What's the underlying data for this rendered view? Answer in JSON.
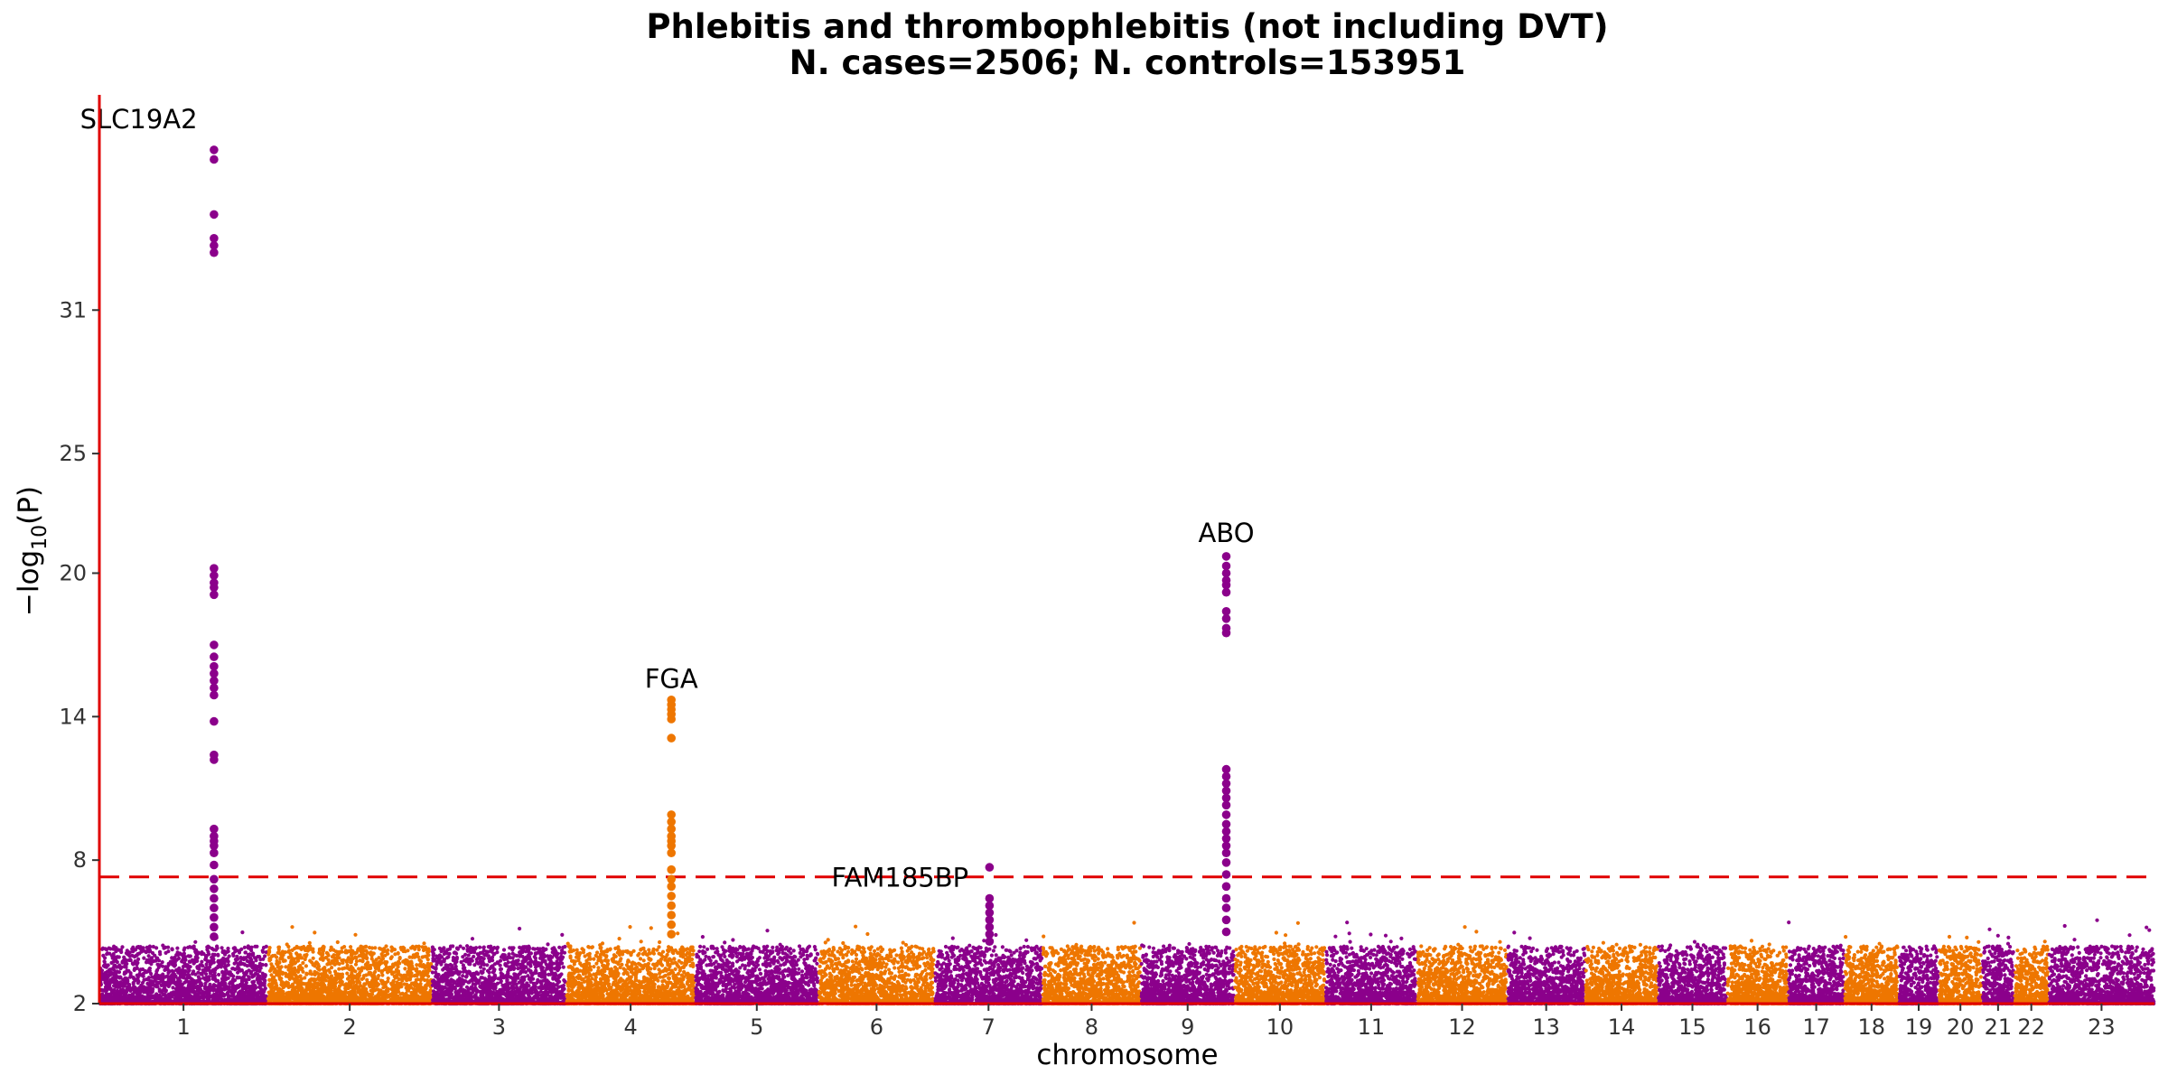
{
  "chart_data": {
    "type": "scatter",
    "title_line1": "Phlebitis and thrombophlebitis (not including DVT)",
    "title_line2": "N. cases=2506; N. controls=153951",
    "xlabel": "chromosome",
    "ylabel": "−log10(P)",
    "ylim": [
      2,
      40
    ],
    "yticks": [
      2,
      8,
      14,
      20,
      25,
      31
    ],
    "significance_threshold": 7.3,
    "colors": {
      "odd": "#8b008b",
      "even": "#ee7600",
      "axis": "#e00000",
      "threshold": "#e00000"
    },
    "chromosomes": [
      {
        "label": "1",
        "start": 0,
        "end": 248
      },
      {
        "label": "2",
        "start": 248,
        "end": 490
      },
      {
        "label": "3",
        "start": 490,
        "end": 688
      },
      {
        "label": "4",
        "start": 688,
        "end": 878
      },
      {
        "label": "5",
        "start": 878,
        "end": 1060
      },
      {
        "label": "6",
        "start": 1060,
        "end": 1231
      },
      {
        "label": "7",
        "start": 1231,
        "end": 1390
      },
      {
        "label": "8",
        "start": 1390,
        "end": 1535
      },
      {
        "label": "9",
        "start": 1535,
        "end": 1673
      },
      {
        "label": "10",
        "start": 1673,
        "end": 1807
      },
      {
        "label": "11",
        "start": 1807,
        "end": 1942
      },
      {
        "label": "12",
        "start": 1942,
        "end": 2075
      },
      {
        "label": "13",
        "start": 2075,
        "end": 2190
      },
      {
        "label": "14",
        "start": 2190,
        "end": 2297
      },
      {
        "label": "15",
        "start": 2297,
        "end": 2399
      },
      {
        "label": "16",
        "start": 2399,
        "end": 2489
      },
      {
        "label": "17",
        "start": 2489,
        "end": 2572
      },
      {
        "label": "18",
        "start": 2572,
        "end": 2652
      },
      {
        "label": "19",
        "start": 2652,
        "end": 2711
      },
      {
        "label": "20",
        "start": 2711,
        "end": 2775
      },
      {
        "label": "21",
        "start": 2775,
        "end": 2822
      },
      {
        "label": "22",
        "start": 2822,
        "end": 2873
      },
      {
        "label": "23",
        "start": 2873,
        "end": 3029
      }
    ],
    "peaks": [
      {
        "gene": "SLC19A2",
        "chrom": "1",
        "pos": 169,
        "label_pos": 58,
        "label_y": 38.6,
        "values": [
          37.7,
          37.3,
          35.0,
          34.0,
          33.7,
          33.4,
          20.2,
          19.9,
          19.6,
          19.4,
          19.1,
          17.0,
          16.5,
          16.1,
          15.8,
          15.5,
          15.2,
          14.9,
          13.8,
          12.4,
          12.2,
          9.3,
          9.0,
          8.8,
          8.6,
          8.3,
          7.8,
          7.2,
          6.8,
          6.4,
          6.0,
          5.6,
          5.2,
          4.8
        ]
      },
      {
        "gene": "FGA",
        "chrom": "4",
        "pos": 843,
        "label_pos": 843,
        "label_y": 15.2,
        "values": [
          14.7,
          14.5,
          14.3,
          14.1,
          13.9,
          13.1,
          9.9,
          9.6,
          9.3,
          9.0,
          8.8,
          8.6,
          8.3,
          7.6,
          7.2,
          6.9,
          6.5,
          6.1,
          5.7,
          5.3,
          4.9
        ]
      },
      {
        "gene": "ABO",
        "chrom": "9",
        "pos": 1661,
        "label_pos": 1661,
        "label_y": 21.3,
        "values": [
          20.7,
          20.3,
          20.0,
          19.7,
          19.5,
          19.2,
          18.4,
          18.1,
          17.7,
          17.5,
          11.8,
          11.5,
          11.2,
          10.9,
          10.6,
          10.3,
          9.9,
          9.5,
          9.2,
          8.9,
          8.6,
          8.3,
          7.9,
          7.4,
          6.9,
          6.4,
          6.0,
          5.5,
          5.0
        ]
      },
      {
        "gene": "FAM185BP",
        "chrom": "7",
        "pos": 1312,
        "label_pos": 1180,
        "label_y": 6.9,
        "values": [
          7.7,
          6.4,
          6.1,
          5.8,
          5.5,
          5.2,
          4.9,
          4.6
        ]
      }
    ]
  }
}
